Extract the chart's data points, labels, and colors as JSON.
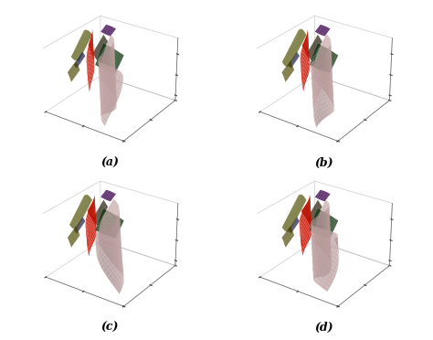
{
  "figure_width": 4.74,
  "figure_height": 3.72,
  "dpi": 100,
  "background_color": "#ffffff",
  "subplot_labels": [
    "(a)",
    "(b)",
    "(c)",
    "(d)"
  ],
  "label_fontsize": 9,
  "label_fontweight": "bold",
  "colors": {
    "pink": "#c8a8a8",
    "yellow": "#ffff00",
    "green": "#228B22",
    "red": "#cc1100",
    "blue": "#2222cc",
    "purple": "#9900cc",
    "dark_brown": "#554400",
    "orange_yellow": "#ddcc00",
    "box_edge": "#888888"
  }
}
